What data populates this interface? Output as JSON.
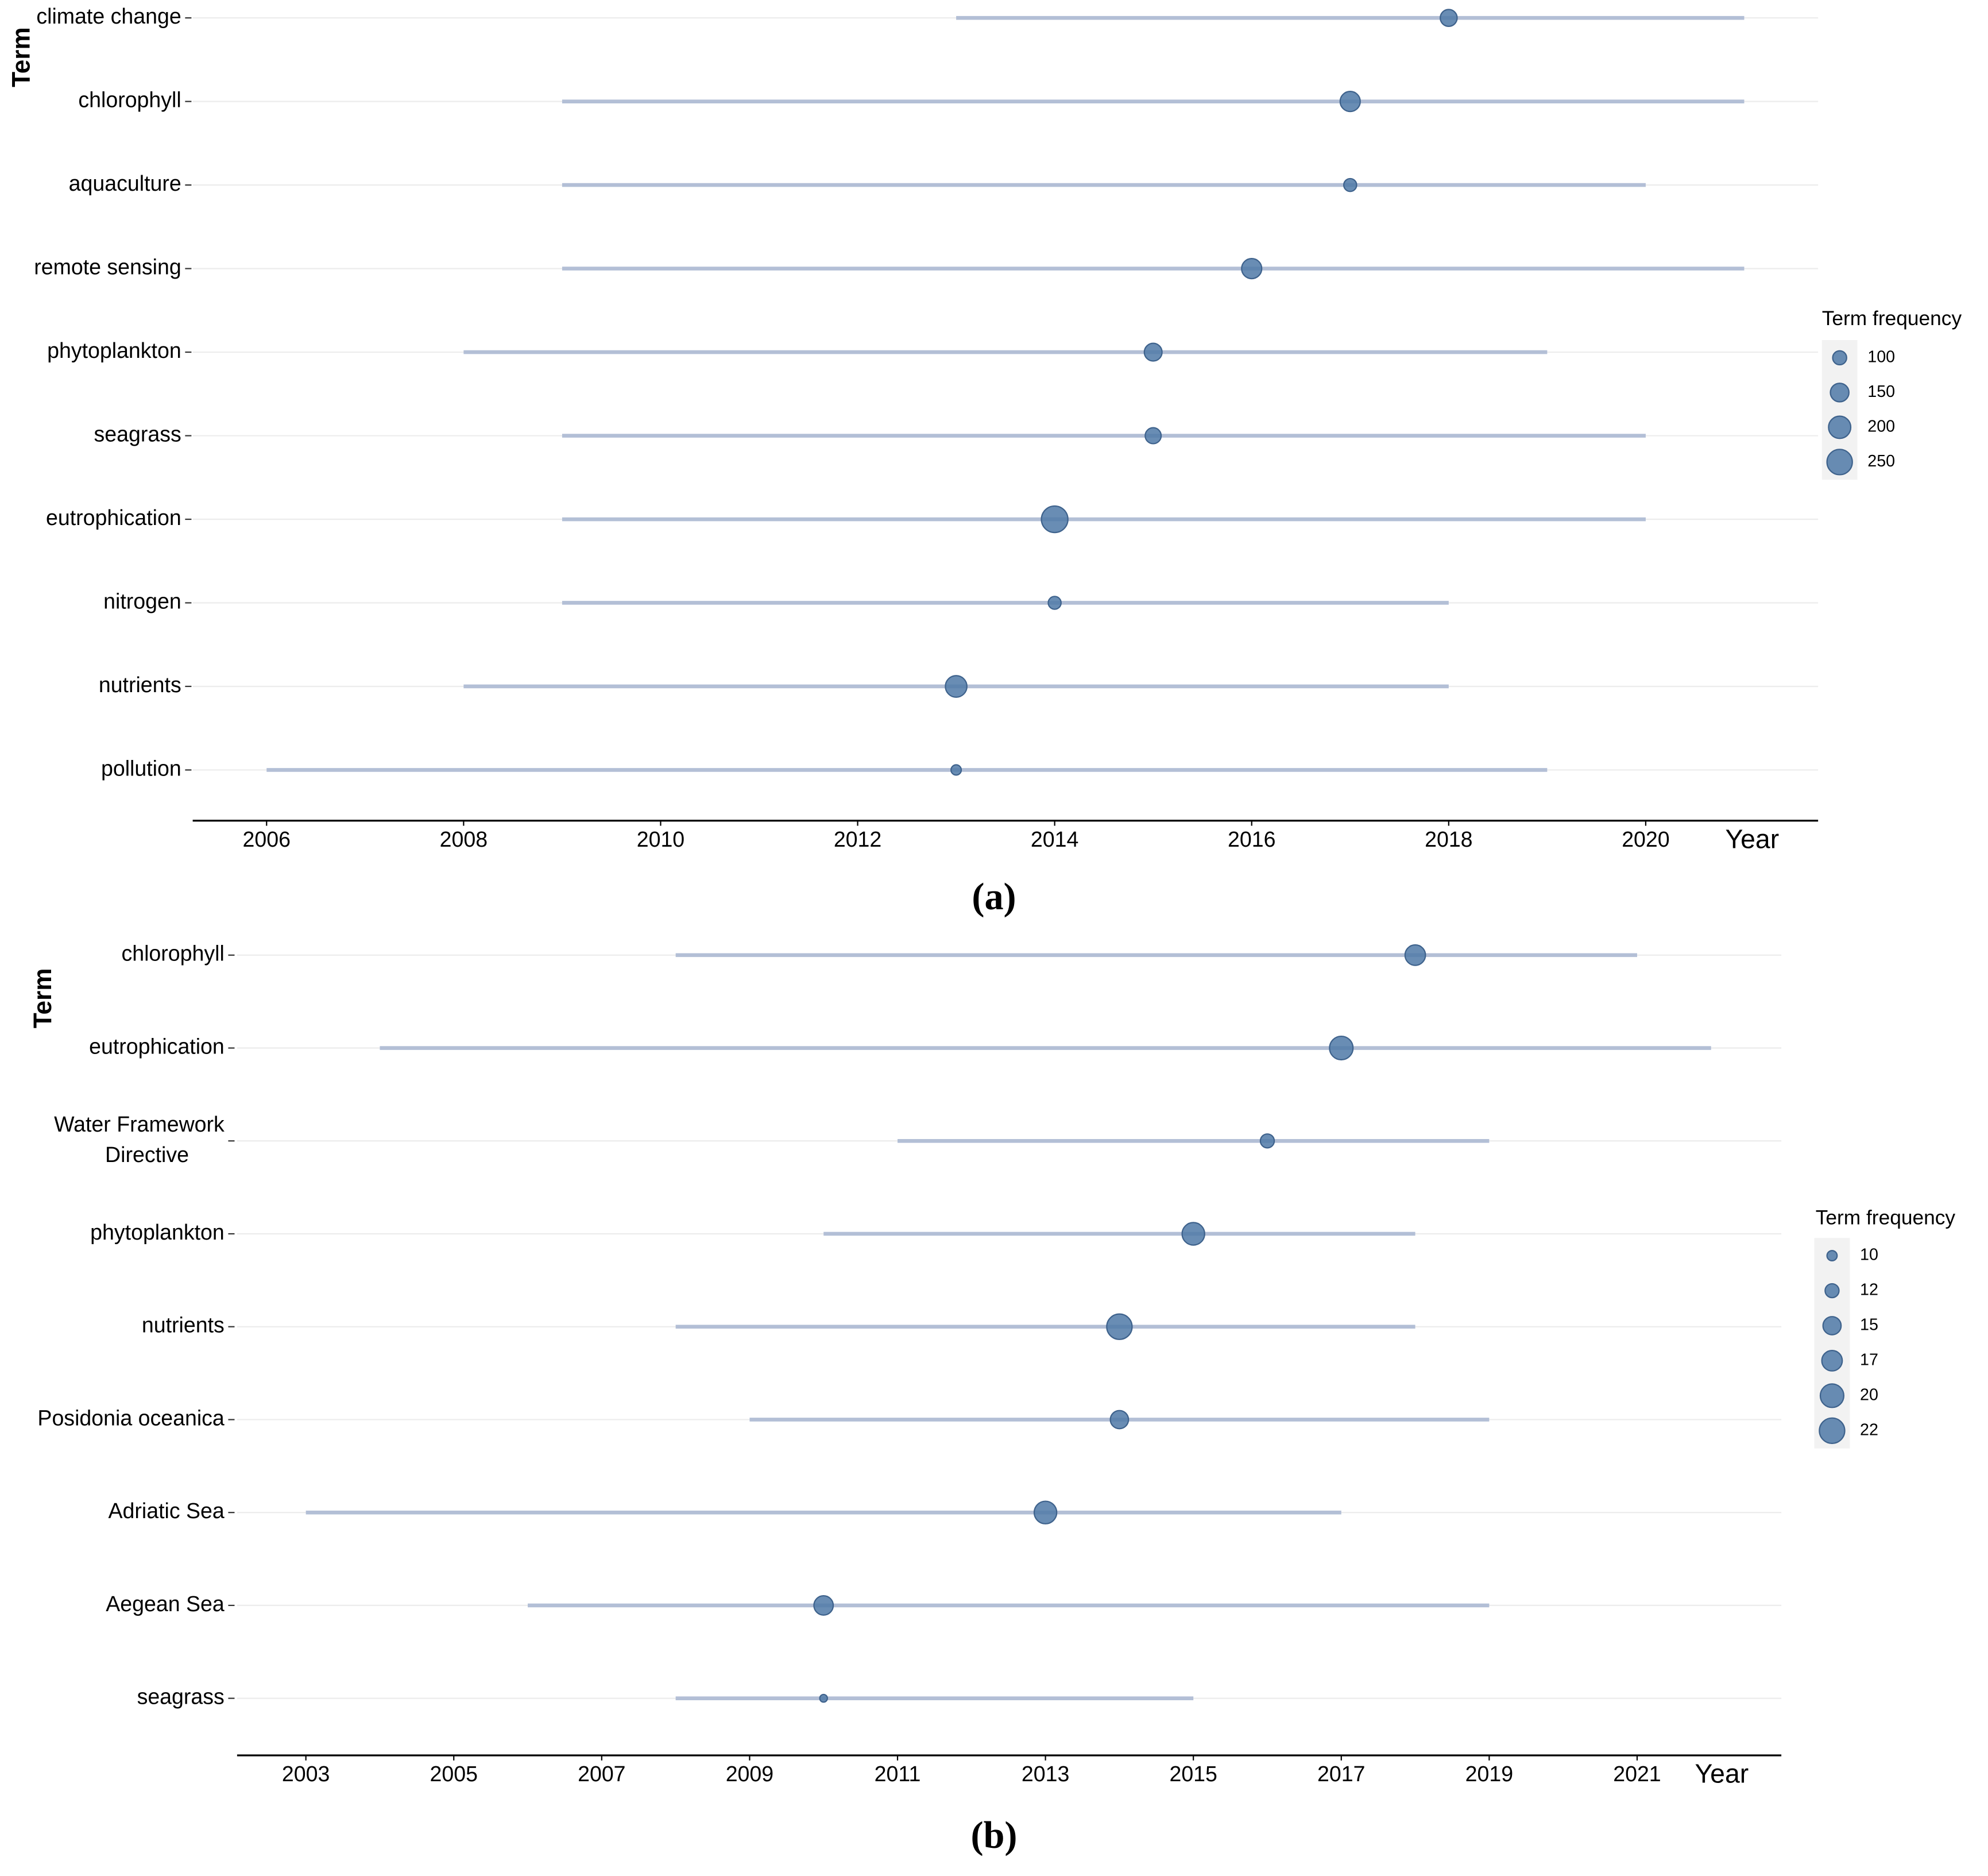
{
  "chart_data": [
    {
      "type": "trend",
      "label": "(a)",
      "ylabel": "Term",
      "xlabel": "Year",
      "categories": [
        "climate change",
        "chlorophyll",
        "aquaculture",
        "remote sensing",
        "phytoplankton",
        "seagrass",
        "eutrophication",
        "nitrogen",
        "nutrients",
        "pollution"
      ],
      "start": [
        2013,
        2009,
        2009,
        2009,
        2008,
        2009,
        2009,
        2009,
        2008,
        2006
      ],
      "end": [
        2021,
        2021,
        2020,
        2021,
        2019,
        2020,
        2020,
        2018,
        2018,
        2019
      ],
      "median": [
        2018,
        2017,
        2017,
        2016,
        2015,
        2015,
        2014,
        2014,
        2013,
        2013
      ],
      "frequency": [
        130,
        170,
        90,
        170,
        140,
        120,
        270,
        90,
        190,
        70
      ],
      "xlim": [
        2005.25,
        2021.75
      ],
      "xticks": [
        2006,
        2008,
        2010,
        2012,
        2014,
        2016,
        2018,
        2020
      ],
      "legend_title": "Term frequency",
      "legend_sizes": [
        100,
        150,
        200,
        250
      ],
      "line_color": "#b3bfd6",
      "color": "#4f79a7",
      "grid": true
    },
    {
      "type": "trend",
      "label": "(b)",
      "ylabel": "Term",
      "xlabel": "Year",
      "categories": [
        "chlorophyll",
        "eutrophication",
        "Water Framework Directive",
        "phytoplankton",
        "nutrients",
        "Posidonia oceanica",
        "Adriatic Sea",
        "Aegean Sea",
        "seagrass"
      ],
      "start": [
        2008,
        2004,
        2011,
        2010,
        2008,
        2009,
        2003,
        2006,
        2008
      ],
      "end": [
        2021,
        2022,
        2019,
        2018,
        2018,
        2019,
        2017,
        2019,
        2015
      ],
      "median": [
        2018,
        2017,
        2016,
        2015,
        2014,
        2014,
        2013,
        2010,
        2010
      ],
      "frequency": [
        17,
        20,
        12,
        19,
        22,
        15,
        19,
        16,
        9
      ],
      "xlim": [
        2002.07,
        2022.95
      ],
      "xticks": [
        2003,
        2005,
        2007,
        2009,
        2011,
        2013,
        2015,
        2017,
        2019,
        2021
      ],
      "legend_title": "Term frequency",
      "legend_sizes": [
        10,
        12,
        15,
        17,
        20,
        22
      ],
      "line_color": "#b3bfd6",
      "color": "#4f79a7",
      "grid": true
    }
  ]
}
